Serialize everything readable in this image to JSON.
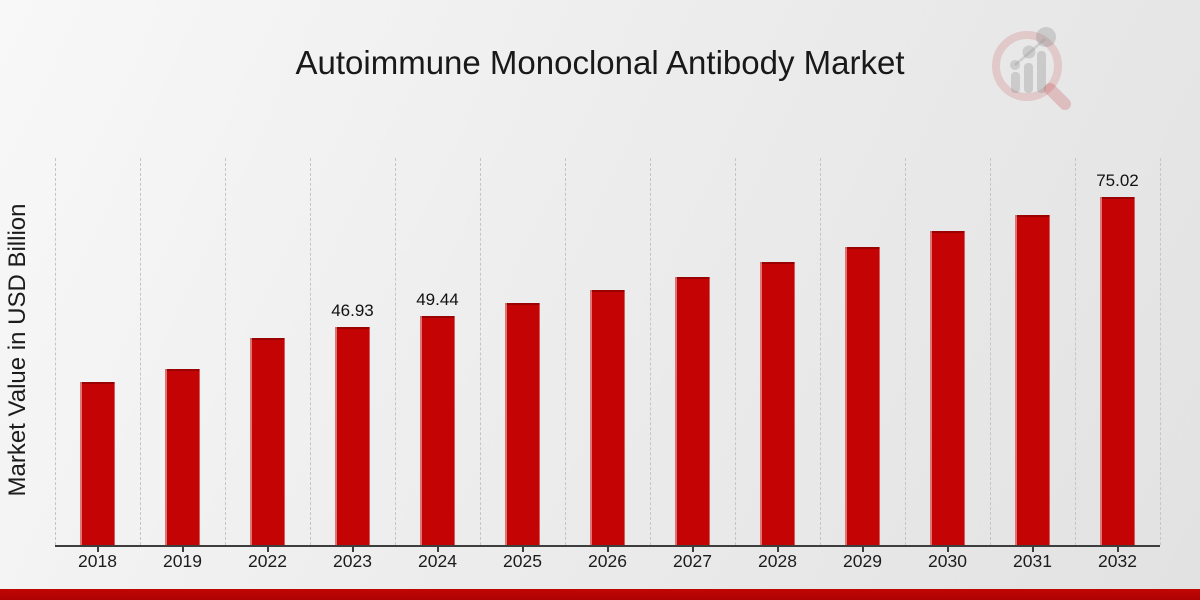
{
  "chart_data": {
    "type": "bar",
    "title": "Autoimmune Monoclonal Antibody Market",
    "xlabel": "",
    "ylabel": "Market Value in USD Billion",
    "categories": [
      "2018",
      "2019",
      "2022",
      "2023",
      "2024",
      "2025",
      "2026",
      "2027",
      "2028",
      "2029",
      "2030",
      "2031",
      "2032"
    ],
    "values": [
      35.05,
      37.9,
      44.55,
      46.93,
      49.44,
      52.08,
      54.87,
      57.8,
      60.89,
      64.15,
      67.58,
      71.2,
      75.02
    ],
    "bar_labels": [
      "",
      "",
      "",
      "46.93",
      "49.44",
      "",
      "",
      "",
      "",
      "",
      "",
      "",
      "75.02"
    ],
    "ylim": [
      0,
      83
    ],
    "grid": "vertical-dashed",
    "legend": "none",
    "unit": "USD Billion"
  },
  "branding": {
    "logo_icon": "magnifier-bar-chart-watermark"
  },
  "accents": {
    "bar_color": "#c40404",
    "footer_bar_color": "#b20404",
    "grid_color": "#c5c5c5",
    "axis_color": "#3d3d3d",
    "title_color": "#191919",
    "logo_red": "#c1272d",
    "logo_gray": "#8a8a8a"
  }
}
